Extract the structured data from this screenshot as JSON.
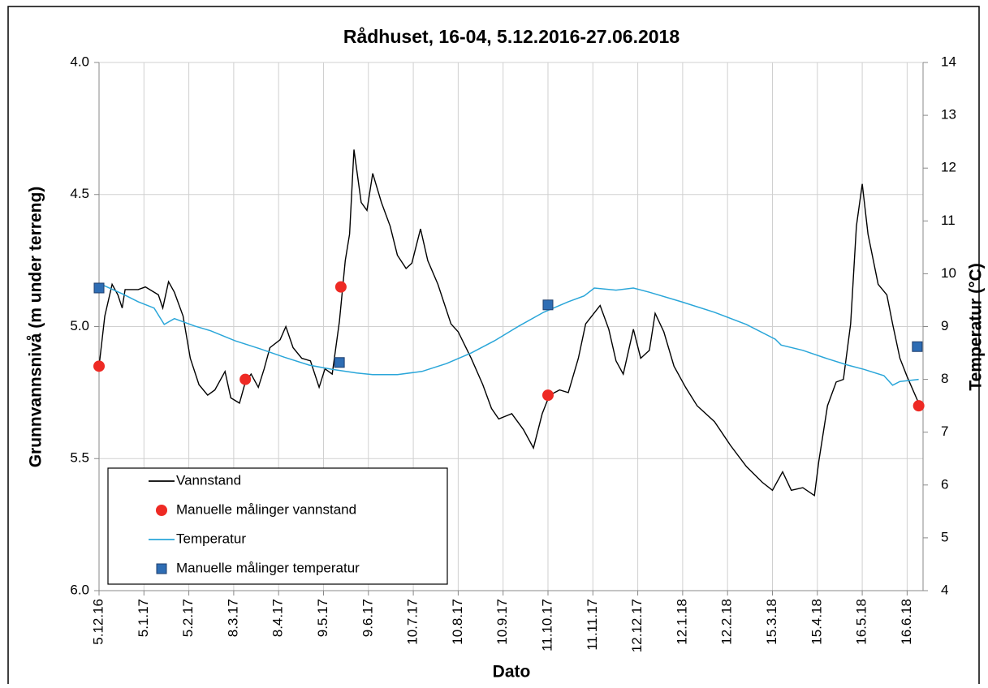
{
  "chart_data": {
    "type": "line",
    "title": "Rådhuset, 16-04, 5.12.2016-27.06.2018",
    "xlabel": "Dato",
    "ylabel": "Grunnvannsnivå (m under terreng)",
    "y2label": "Temperatur (°C)",
    "xlim": [
      "2016-12-05",
      "2018-06-27"
    ],
    "xticks": [
      {
        "value": "2016-12-05",
        "label": "5.12.16"
      },
      {
        "value": "2017-01-05",
        "label": "5.1.17"
      },
      {
        "value": "2017-02-05",
        "label": "5.2.17"
      },
      {
        "value": "2017-03-08",
        "label": "8.3.17"
      },
      {
        "value": "2017-04-08",
        "label": "8.4.17"
      },
      {
        "value": "2017-05-09",
        "label": "9.5.17"
      },
      {
        "value": "2017-06-09",
        "label": "9.6.17"
      },
      {
        "value": "2017-07-10",
        "label": "10.7.17"
      },
      {
        "value": "2017-08-10",
        "label": "10.8.17"
      },
      {
        "value": "2017-09-10",
        "label": "10.9.17"
      },
      {
        "value": "2017-10-11",
        "label": "11.10.17"
      },
      {
        "value": "2017-11-11",
        "label": "11.11.17"
      },
      {
        "value": "2017-12-12",
        "label": "12.12.17"
      },
      {
        "value": "2018-01-12",
        "label": "12.1.18"
      },
      {
        "value": "2018-02-12",
        "label": "12.2.18"
      },
      {
        "value": "2018-03-15",
        "label": "15.3.18"
      },
      {
        "value": "2018-04-15",
        "label": "15.4.18"
      },
      {
        "value": "2018-05-16",
        "label": "16.5.18"
      },
      {
        "value": "2018-06-16",
        "label": "16.6.18"
      }
    ],
    "ylim": [
      6,
      4
    ],
    "yticks": [
      {
        "value": 4,
        "label": "4.0"
      },
      {
        "value": 4.5,
        "label": "4.5"
      },
      {
        "value": 5,
        "label": "5.0"
      },
      {
        "value": 5.5,
        "label": "5.5"
      },
      {
        "value": 6,
        "label": "6.0"
      }
    ],
    "y2lim": [
      4,
      14
    ],
    "y2ticks": [
      4,
      5,
      6,
      7,
      8,
      9,
      10,
      11,
      12,
      13,
      14
    ],
    "grid": true,
    "legend": "lower left",
    "series": [
      {
        "name": "Vannstand",
        "style": "line",
        "color": "#000000",
        "x": [
          "2016-12-05",
          "2016-12-09",
          "2016-12-14",
          "2016-12-18",
          "2016-12-21",
          "2016-12-23",
          "2017-01-01",
          "2017-01-06",
          "2017-01-15",
          "2017-01-18",
          "2017-01-22",
          "2017-01-26",
          "2017-02-01",
          "2017-02-06",
          "2017-02-12",
          "2017-02-18",
          "2017-02-23",
          "2017-03-02",
          "2017-03-06",
          "2017-03-12",
          "2017-03-16",
          "2017-03-20",
          "2017-03-25",
          "2017-03-29",
          "2017-04-02",
          "2017-04-09",
          "2017-04-13",
          "2017-04-18",
          "2017-04-24",
          "2017-04-30",
          "2017-05-06",
          "2017-05-10",
          "2017-05-15",
          "2017-05-20",
          "2017-05-24",
          "2017-05-27",
          "2017-05-30",
          "2017-06-04",
          "2017-06-08",
          "2017-06-12",
          "2017-06-18",
          "2017-06-24",
          "2017-06-29",
          "2017-07-05",
          "2017-07-09",
          "2017-07-15",
          "2017-07-20",
          "2017-07-27",
          "2017-08-05",
          "2017-08-10",
          "2017-08-19",
          "2017-08-27",
          "2017-09-02",
          "2017-09-07",
          "2017-09-16",
          "2017-09-24",
          "2017-10-01",
          "2017-10-07",
          "2017-10-12",
          "2017-10-19",
          "2017-10-25",
          "2017-11-01",
          "2017-11-06",
          "2017-11-16",
          "2017-11-22",
          "2017-11-27",
          "2017-12-02",
          "2017-12-09",
          "2017-12-14",
          "2017-12-20",
          "2017-12-24",
          "2017-12-30",
          "2018-01-06",
          "2018-01-14",
          "2018-01-22",
          "2018-02-03",
          "2018-02-14",
          "2018-02-25",
          "2018-03-08",
          "2018-03-15",
          "2018-03-22",
          "2018-03-28",
          "2018-04-05",
          "2018-04-13",
          "2018-04-16",
          "2018-04-22",
          "2018-04-28",
          "2018-05-03",
          "2018-05-08",
          "2018-05-12",
          "2018-05-16",
          "2018-05-20",
          "2018-05-27",
          "2018-06-02",
          "2018-06-06",
          "2018-06-11",
          "2018-06-16",
          "2018-06-24"
        ],
        "values": [
          5.15,
          4.96,
          4.84,
          4.88,
          4.93,
          4.86,
          4.86,
          4.85,
          4.88,
          4.93,
          4.83,
          4.87,
          4.96,
          5.12,
          5.22,
          5.26,
          5.24,
          5.17,
          5.27,
          5.29,
          5.21,
          5.18,
          5.23,
          5.16,
          5.08,
          5.05,
          5.0,
          5.08,
          5.12,
          5.13,
          5.23,
          5.16,
          5.18,
          4.98,
          4.75,
          4.65,
          4.33,
          4.53,
          4.56,
          4.42,
          4.53,
          4.62,
          4.73,
          4.78,
          4.76,
          4.63,
          4.75,
          4.84,
          4.99,
          5.02,
          5.12,
          5.22,
          5.31,
          5.35,
          5.33,
          5.39,
          5.46,
          5.33,
          5.26,
          5.24,
          5.25,
          5.12,
          4.99,
          4.92,
          5.01,
          5.13,
          5.18,
          5.01,
          5.12,
          5.09,
          4.95,
          5.02,
          5.15,
          5.23,
          5.3,
          5.36,
          5.45,
          5.53,
          5.59,
          5.62,
          5.55,
          5.62,
          5.61,
          5.64,
          5.51,
          5.3,
          5.21,
          5.2,
          4.99,
          4.62,
          4.46,
          4.65,
          4.84,
          4.88,
          4.99,
          5.12,
          5.19,
          5.29
        ]
      },
      {
        "name": "Manuelle målinger vannstand",
        "style": "circle",
        "color": "#ee2a24",
        "x": [
          "2016-12-05",
          "2017-03-16",
          "2017-05-21",
          "2017-10-11",
          "2018-06-24"
        ],
        "values": [
          5.15,
          5.2,
          4.85,
          5.26,
          5.3
        ]
      },
      {
        "name": "Temperatur",
        "style": "line",
        "color": "#2aa6d9",
        "axis": "y2",
        "x": [
          "2016-12-05",
          "2016-12-08",
          "2016-12-21",
          "2017-01-01",
          "2017-01-12",
          "2017-01-19",
          "2017-01-26",
          "2017-02-09",
          "2017-02-20",
          "2017-03-09",
          "2017-03-26",
          "2017-04-12",
          "2017-04-29",
          "2017-05-15",
          "2017-06-01",
          "2017-06-12",
          "2017-06-29",
          "2017-07-16",
          "2017-08-02",
          "2017-08-19",
          "2017-09-04",
          "2017-09-21",
          "2017-10-08",
          "2017-10-25",
          "2017-11-05",
          "2017-11-12",
          "2017-11-27",
          "2017-12-09",
          "2017-12-20",
          "2018-01-11",
          "2018-02-03",
          "2018-02-25",
          "2018-03-17",
          "2018-03-21",
          "2018-04-05",
          "2018-04-22",
          "2018-05-06",
          "2018-05-17",
          "2018-05-31",
          "2018-06-06",
          "2018-06-11",
          "2018-06-24"
        ],
        "values": [
          9.65,
          9.78,
          9.62,
          9.47,
          9.35,
          9.04,
          9.15,
          9.01,
          8.92,
          8.73,
          8.58,
          8.42,
          8.27,
          8.19,
          8.12,
          8.09,
          8.09,
          8.15,
          8.3,
          8.5,
          8.73,
          9.01,
          9.27,
          9.47,
          9.58,
          9.73,
          9.69,
          9.73,
          9.65,
          9.47,
          9.27,
          9.04,
          8.76,
          8.65,
          8.55,
          8.39,
          8.27,
          8.19,
          8.07,
          7.89,
          7.96,
          8.0
        ]
      },
      {
        "name": "Manuelle målinger temperatur",
        "style": "square",
        "color": "#2e6db4",
        "axis": "y2",
        "x": [
          "2016-12-05",
          "2017-05-20",
          "2017-10-11",
          "2018-06-23"
        ],
        "values": [
          9.73,
          8.32,
          9.41,
          8.62
        ]
      }
    ]
  }
}
